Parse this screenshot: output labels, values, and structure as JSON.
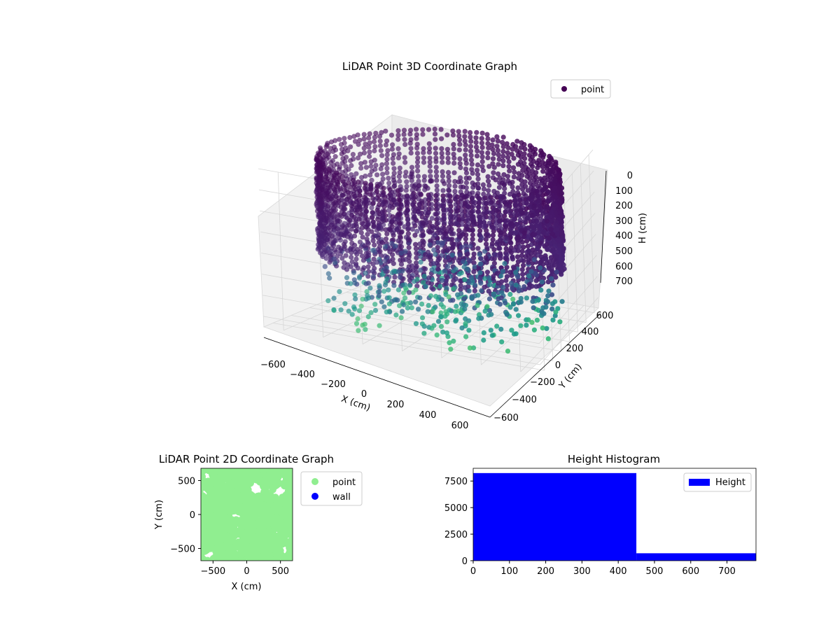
{
  "chart_data": [
    {
      "type": "scatter",
      "title": "LiDAR Point 3D Coordinate Graph",
      "xlabel": "X (cm)",
      "ylabel": "Y (cm)",
      "zlabel": "H (cm)",
      "xlim": [
        -700,
        700
      ],
      "ylim": [
        -700,
        700
      ],
      "zlim": [
        0,
        750
      ],
      "z_inverted": true,
      "xticks": [
        "−600",
        "−400",
        "−200",
        "0",
        "200",
        "400",
        "600"
      ],
      "yticks": [
        "−600",
        "−400",
        "−200",
        "0",
        "200",
        "400",
        "600"
      ],
      "zticks": [
        "0",
        "100",
        "200",
        "300",
        "400",
        "500",
        "600",
        "700"
      ],
      "grid": true,
      "legend": {
        "placement": "top-right",
        "entries": [
          {
            "label": "point",
            "color": "#440154"
          }
        ]
      },
      "colormap": "viridis",
      "series": [
        {
          "name": "point",
          "structure": "ring wall of points at radius ~650 cm over 0–450 cm height, with scattered points inside reaching 750 cm"
        }
      ]
    },
    {
      "type": "scatter",
      "title": "LiDAR Point 2D Coordinate Graph",
      "xlabel": "X (cm)",
      "ylabel": "Y (cm)",
      "xlim": [
        -680,
        680
      ],
      "ylim": [
        -680,
        680
      ],
      "xticks": [
        -500,
        0,
        500
      ],
      "yticks": [
        -500,
        0,
        500
      ],
      "legend": {
        "placement": "outside-right",
        "entries": [
          {
            "label": "point",
            "color": "#90ee90"
          },
          {
            "label": "wall",
            "color": "#0000ff"
          }
        ]
      },
      "series": [
        {
          "name": "point",
          "color": "#90ee90",
          "note": "dense coverage of the area"
        },
        {
          "name": "wall",
          "color": "#0000ff",
          "points": []
        }
      ]
    },
    {
      "type": "bar",
      "title": "Height Histogram",
      "xlim": [
        0,
        780
      ],
      "ylim": [
        0,
        8700
      ],
      "xticks": [
        0,
        100,
        200,
        300,
        400,
        500,
        600,
        700
      ],
      "yticks": [
        0,
        2500,
        5000,
        7500
      ],
      "legend": {
        "placement": "top-right",
        "entries": [
          {
            "label": "Height",
            "color": "#0000ff"
          }
        ]
      },
      "series": [
        {
          "name": "Height",
          "color": "#0000ff",
          "bins": [
            {
              "from": 0,
              "to": 450,
              "count": 8250
            },
            {
              "from": 450,
              "to": 780,
              "count": 700
            }
          ]
        }
      ]
    }
  ]
}
